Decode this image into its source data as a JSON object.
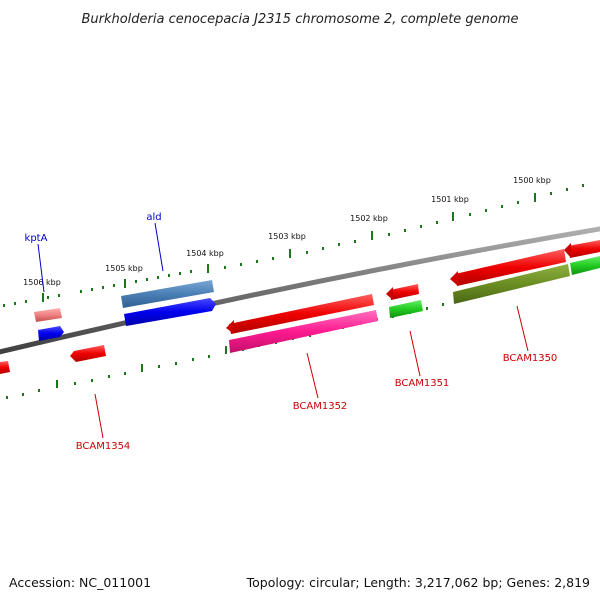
{
  "title": "Burkholderia cenocepacia J2315 chromosome 2, complete genome",
  "footer": {
    "accession": "Accession: NC_011001",
    "topology": "Topology: circular; Length: 3,217,062 bp; Genes: 2,819"
  },
  "ticks": [
    {
      "label": "1500 kbp"
    },
    {
      "label": "1501 kbp"
    },
    {
      "label": "1502 kbp"
    },
    {
      "label": "1503 kbp"
    },
    {
      "label": "1504 kbp"
    },
    {
      "label": "1505 kbp"
    },
    {
      "label": "1506 kbp"
    }
  ],
  "gene_labels": [
    {
      "text": "kptA",
      "color": "#0000cc"
    },
    {
      "text": "ald",
      "color": "#0000cc"
    },
    {
      "text": "BCAM1350",
      "color": "#cc0000"
    },
    {
      "text": "BCAM1351",
      "color": "#cc0000"
    },
    {
      "text": "BCAM1352",
      "color": "#cc0000"
    },
    {
      "text": "BCAM1354",
      "color": "#cc0000"
    }
  ],
  "colors": {
    "backbone": "#808080",
    "tick": "#1a7a1a",
    "forward_red": "#ee0000",
    "blue": "#0000ee",
    "steel_blue": "#4a7fb5",
    "pink": "#ff3fa0",
    "olive": "#6b8e23",
    "green": "#22cc22"
  }
}
